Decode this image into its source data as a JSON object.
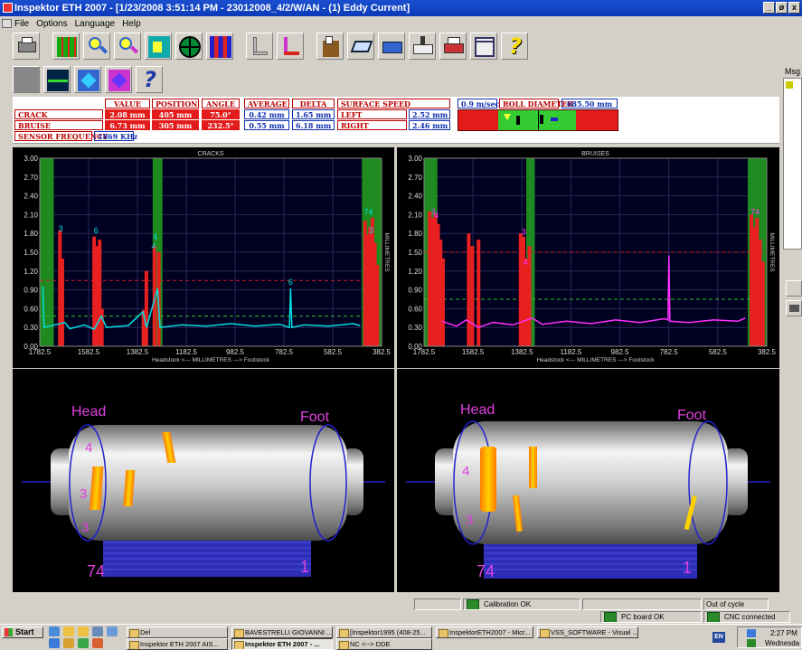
{
  "window": {
    "title": "Inspektor ETH 2007 - [1/23/2008 3:51:14 PM - 23012008_4/2/W/AN - (1) Eddy Current]",
    "min": "_",
    "restore": "ø",
    "close": "x"
  },
  "menu": [
    "File",
    "Options",
    "Language",
    "Help"
  ],
  "msg_label": "Msg",
  "measurements": {
    "headers": {
      "value": "VALUE",
      "position": "POSITION",
      "angle": "ANGLE",
      "average": "AVERAGE",
      "delta": "DELTA",
      "surface_speed": "SURFACE SPEED",
      "roll_diameter": "ROLL DIAMETER"
    },
    "speed_value": "0.9 m/sec",
    "roll_diameter_value": "685.50 mm",
    "crack": {
      "label": "CRACK",
      "value": "2.08 mm",
      "position": "405 mm",
      "angle": "75.0°",
      "average": "0.42 mm",
      "delta": "1.65 mm",
      "side": "LEFT",
      "side_value": "2.52 mm"
    },
    "bruise": {
      "label": "BRUISE",
      "value": "6.73 mm",
      "position": "305 mm",
      "angle": "232.5°",
      "average": "0.55 mm",
      "delta": "6.18 mm",
      "side": "RIGHT",
      "side_value": "2.46 mm"
    },
    "sensor_frequency_label": "SENSOR FREQUENCY",
    "sensor_frequency_value": "1869 KHz"
  },
  "charts": {
    "x_caption": "Headstock <--- MILLIMETRES ---> Footstock",
    "y_caption": "MILLIMETRES",
    "y_ticks": [
      "3.00",
      "2.70",
      "2.40",
      "2.10",
      "1.80",
      "1.50",
      "1.20",
      "0.90",
      "0.60",
      "0.30",
      "0.00"
    ],
    "x_ticks": [
      "1782.5",
      "1582.5",
      "1382.5",
      "1182.5",
      "982.5",
      "782.5",
      "582.5",
      "382.5"
    ]
  },
  "chart_data": [
    {
      "type": "line",
      "title": "CRACKS",
      "xlabel": "Headstock <--- MILLIMETRES ---> Footstock",
      "ylabel": "MILLIMETRES",
      "ylim": [
        0,
        3.0
      ],
      "xlim": [
        1782.5,
        382.5
      ],
      "x_reversed": true,
      "grid": true,
      "line_color": "#00e0e0",
      "threshold_red": 1.05,
      "threshold_green": 0.48,
      "green_zones": [
        [
          1782.5,
          1725
        ],
        [
          1320,
          1280
        ],
        [
          463,
          382.5
        ]
      ],
      "red_spikes": [
        {
          "x": 1700,
          "y": 1.85
        },
        {
          "x": 1690,
          "y": 1.4
        },
        {
          "x": 1560,
          "y": 1.75
        },
        {
          "x": 1548,
          "y": 1.6
        },
        {
          "x": 1537,
          "y": 1.7
        },
        {
          "x": 1528,
          "y": 0.6
        },
        {
          "x": 1358,
          "y": 0.58
        },
        {
          "x": 1346,
          "y": 1.2
        },
        {
          "x": 1313,
          "y": 1.6
        },
        {
          "x": 1295,
          "y": 1.5
        },
        {
          "x": 450,
          "y": 2.0
        },
        {
          "x": 440,
          "y": 1.78
        },
        {
          "x": 430,
          "y": 1.9
        },
        {
          "x": 420,
          "y": 2.05
        },
        {
          "x": 410,
          "y": 1.65
        },
        {
          "x": 400,
          "y": 1.3
        }
      ],
      "marks": [
        {
          "x": 1697,
          "y": 1.83,
          "label": "3"
        },
        {
          "x": 1552,
          "y": 1.8,
          "label": "6"
        },
        {
          "x": 1310,
          "y": 1.7,
          "label": "4"
        },
        {
          "x": 1316,
          "y": 1.55,
          "label": "4"
        },
        {
          "x": 755,
          "y": 0.98,
          "label": "6"
        },
        {
          "x": 436,
          "y": 2.1,
          "label": "74"
        },
        {
          "x": 425,
          "y": 1.8,
          "label": "3"
        }
      ],
      "signal": [
        {
          "x": 1770,
          "y": 0.95
        },
        {
          "x": 1765,
          "y": 0.3
        },
        {
          "x": 1680,
          "y": 0.38
        },
        {
          "x": 1660,
          "y": 0.28
        },
        {
          "x": 1600,
          "y": 0.34
        },
        {
          "x": 1560,
          "y": 0.27
        },
        {
          "x": 1530,
          "y": 0.48
        },
        {
          "x": 1510,
          "y": 0.3
        },
        {
          "x": 1420,
          "y": 0.33
        },
        {
          "x": 1360,
          "y": 0.55
        },
        {
          "x": 1345,
          "y": 0.3
        },
        {
          "x": 1300,
          "y": 0.92
        },
        {
          "x": 1290,
          "y": 0.3
        },
        {
          "x": 1200,
          "y": 0.34
        },
        {
          "x": 1100,
          "y": 0.32
        },
        {
          "x": 1000,
          "y": 0.36
        },
        {
          "x": 900,
          "y": 0.32
        },
        {
          "x": 800,
          "y": 0.35
        },
        {
          "x": 760,
          "y": 0.3
        },
        {
          "x": 755,
          "y": 0.92
        },
        {
          "x": 750,
          "y": 0.3
        },
        {
          "x": 700,
          "y": 0.34
        },
        {
          "x": 600,
          "y": 0.32
        },
        {
          "x": 500,
          "y": 0.36
        },
        {
          "x": 470,
          "y": 0.33
        }
      ]
    },
    {
      "type": "line",
      "title": "BRUISES",
      "xlabel": "Headstock <--- MILLIMETRES ---> Footstock",
      "ylabel": "MILLIMETRES",
      "ylim": [
        0,
        3.0
      ],
      "xlim": [
        1782.5,
        382.5
      ],
      "x_reversed": true,
      "grid": true,
      "line_color": "#ff30ff",
      "threshold_red": 1.5,
      "threshold_green": 0.75,
      "green_zones": [
        [
          1782.5,
          1728
        ],
        [
          1365,
          1330
        ],
        [
          460,
          382.5
        ]
      ],
      "red_spikes": [
        {
          "x": 1760,
          "y": 2.15
        },
        {
          "x": 1748,
          "y": 2.05
        },
        {
          "x": 1736,
          "y": 2.1
        },
        {
          "x": 1725,
          "y": 1.95
        },
        {
          "x": 1715,
          "y": 1.7
        },
        {
          "x": 1705,
          "y": 1.4
        },
        {
          "x": 1600,
          "y": 1.8
        },
        {
          "x": 1585,
          "y": 1.6
        },
        {
          "x": 1560,
          "y": 1.7
        },
        {
          "x": 1388,
          "y": 1.8
        },
        {
          "x": 1376,
          "y": 1.75
        },
        {
          "x": 1365,
          "y": 1.4
        },
        {
          "x": 1352,
          "y": 1.6
        },
        {
          "x": 445,
          "y": 2.1
        },
        {
          "x": 433,
          "y": 1.9
        },
        {
          "x": 422,
          "y": 2.05
        },
        {
          "x": 410,
          "y": 1.7
        },
        {
          "x": 398,
          "y": 1.35
        }
      ],
      "marks": [
        {
          "x": 1745,
          "y": 2.1,
          "label": "3"
        },
        {
          "x": 1732,
          "y": 2.05,
          "label": "4"
        },
        {
          "x": 1375,
          "y": 1.78,
          "label": "3"
        },
        {
          "x": 1368,
          "y": 1.3,
          "label": "4"
        },
        {
          "x": 430,
          "y": 2.1,
          "label": "74"
        }
      ],
      "signal": [
        {
          "x": 1710,
          "y": 0.4
        },
        {
          "x": 1650,
          "y": 0.32
        },
        {
          "x": 1610,
          "y": 0.42
        },
        {
          "x": 1560,
          "y": 0.3
        },
        {
          "x": 1500,
          "y": 0.38
        },
        {
          "x": 1420,
          "y": 0.34
        },
        {
          "x": 1340,
          "y": 0.45
        },
        {
          "x": 1300,
          "y": 0.35
        },
        {
          "x": 1200,
          "y": 0.4
        },
        {
          "x": 1100,
          "y": 0.36
        },
        {
          "x": 1000,
          "y": 0.42
        },
        {
          "x": 900,
          "y": 0.38
        },
        {
          "x": 800,
          "y": 0.44
        },
        {
          "x": 786,
          "y": 0.42
        },
        {
          "x": 782,
          "y": 1.45
        },
        {
          "x": 778,
          "y": 0.4
        },
        {
          "x": 700,
          "y": 0.38
        },
        {
          "x": 600,
          "y": 0.42
        },
        {
          "x": 500,
          "y": 0.4
        },
        {
          "x": 470,
          "y": 0.45
        }
      ]
    }
  ],
  "roll_views": [
    {
      "head": "Head",
      "foot": "Foot",
      "left_num": "74",
      "right_num": "1",
      "zone_labels": [
        "4",
        "3",
        "3"
      ]
    },
    {
      "head": "Head",
      "foot": "Foot",
      "left_num": "74",
      "right_num": "1",
      "zone_labels": [
        "4",
        "3"
      ]
    }
  ],
  "status": {
    "calibration": "Calibration OK",
    "cycle": "Out of cycle",
    "pc_board": "PC board OK",
    "cnc": "CNC connected"
  },
  "taskbar": {
    "start": "Start",
    "tasks_row1": [
      "Del",
      "BAVESTRELLI GIOVANNI ...",
      "[Inspektor1995 (408-25...",
      "InspektorETH2007 - Micr...",
      "VSS_SOFTWARE - Visual ..."
    ],
    "tasks_row2": [
      "Inspektor ETH 2007 AIS...",
      "Inspektor ETH 2007 - ...",
      "NC <--> DDE"
    ],
    "lang": "EN",
    "time": "2:27 PM",
    "day": "Wednesda"
  }
}
